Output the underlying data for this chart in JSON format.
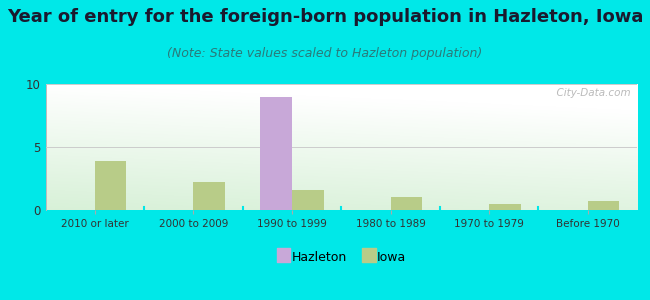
{
  "categories": [
    "2010 or later",
    "2000 to 2009",
    "1990 to 1999",
    "1980 to 1989",
    "1970 to 1979",
    "Before 1970"
  ],
  "hazleton_values": [
    0,
    0,
    9.0,
    0,
    0,
    0
  ],
  "iowa_values": [
    3.9,
    2.2,
    1.6,
    1.0,
    0.5,
    0.7
  ],
  "hazleton_color": "#c8a8d8",
  "iowa_color": "#b8cc88",
  "title": "Year of entry for the foreign-born population in Hazleton, Iowa",
  "subtitle": "(Note: State values scaled to Hazleton population)",
  "ylim": [
    0,
    10
  ],
  "yticks": [
    0,
    5,
    10
  ],
  "background_outer": "#00e8e8",
  "background_inner_top_left": "#e8f5e8",
  "background_inner_top_right": "#ffffff",
  "background_inner_bottom": "#c8e8c0",
  "bar_width": 0.32,
  "title_fontsize": 13,
  "subtitle_fontsize": 9,
  "watermark": "  City-Data.com"
}
